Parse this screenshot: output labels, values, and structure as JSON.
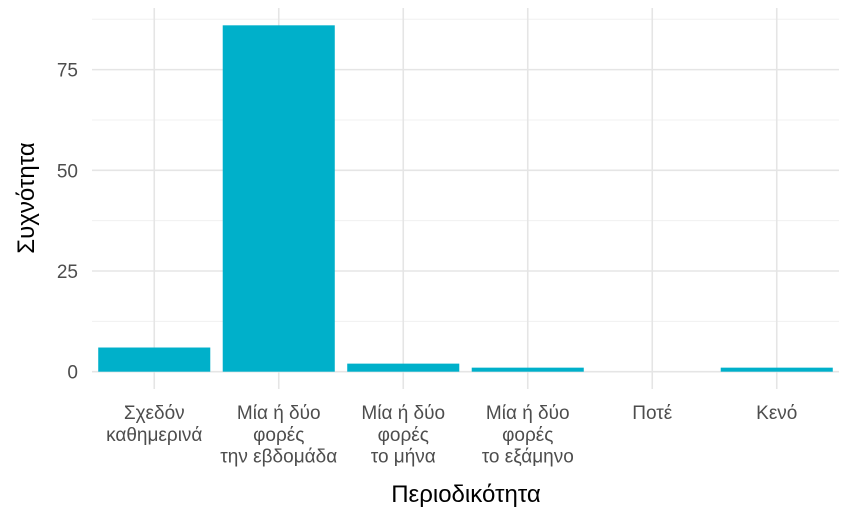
{
  "chart_data": {
    "type": "bar",
    "x_label": "Περιοδικότητα",
    "y_label": "Συχνότητα",
    "categories": [
      "Σχεδόν\nκαθημερινά",
      "Μία ή δύο\nφορές\nτην εβδομάδα",
      "Μία ή δύο\nφορές\nτο μήνα",
      "Μία ή δύο\nφορές\nτο εξάμηνο",
      "Ποτέ",
      "Κενό"
    ],
    "values": [
      6,
      86,
      2,
      1,
      0,
      1
    ],
    "color": "#00b0ca",
    "ylim": [
      -4.3,
      90.3
    ],
    "yticks": [
      0,
      25,
      50,
      75
    ],
    "grid": true
  }
}
